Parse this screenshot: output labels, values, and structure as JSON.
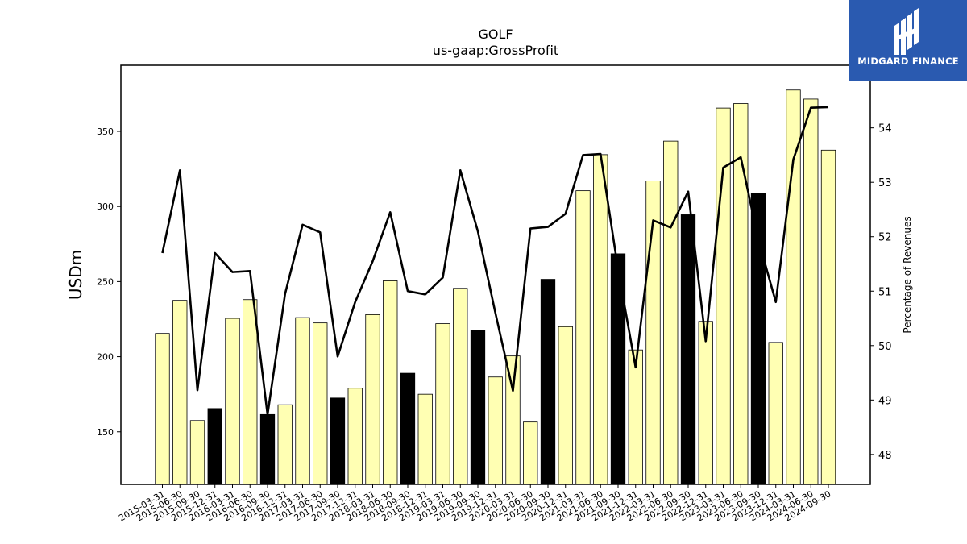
{
  "brand": {
    "name": "MIDGARD FINANCE",
    "logo_icon": "midgard-logo-icon",
    "background": "#2a5ab0"
  },
  "chart_data": {
    "type": "bar",
    "title": "GOLF",
    "subtitle": "us-gaap:GrossProfit",
    "ylabel": "USDm",
    "y2label": "Percentage of Revenues",
    "ylim": [
      115,
      394
    ],
    "y2lim": [
      47.45,
      55.15
    ],
    "yticks": [
      150,
      200,
      250,
      300,
      350
    ],
    "y2ticks": [
      48,
      49,
      50,
      51,
      52,
      53,
      54
    ],
    "grid": false,
    "colors": {
      "bar_default": "#ffffb3",
      "bar_highlight": "#000000",
      "line": "#000000"
    },
    "categories": [
      "2015-03-31",
      "2015-06-30",
      "2015-09-30",
      "2015-12-31",
      "2016-03-31",
      "2016-06-30",
      "2016-09-30",
      "2016-12-31",
      "2017-03-31",
      "2017-06-30",
      "2017-09-30",
      "2017-12-31",
      "2018-03-31",
      "2018-06-30",
      "2018-09-30",
      "2018-12-31",
      "2019-03-31",
      "2019-06-30",
      "2019-09-30",
      "2019-12-31",
      "2020-03-31",
      "2020-06-30",
      "2020-09-30",
      "2020-12-31",
      "2021-03-31",
      "2021-06-30",
      "2021-09-30",
      "2021-12-31",
      "2022-03-31",
      "2022-06-30",
      "2022-09-30",
      "2022-12-31",
      "2023-03-31",
      "2023-06-30",
      "2023-09-30",
      "2023-12-31",
      "2024-03-31",
      "2024-06-30",
      "2024-09-30"
    ],
    "series": [
      {
        "kind": "bar",
        "axis": "left",
        "values": [
          215.5,
          237.5,
          157.5,
          165.5,
          225.5,
          238,
          161.5,
          168,
          226,
          222.5,
          172.5,
          179,
          228,
          250.5,
          189,
          175,
          222,
          245.5,
          217.5,
          186.5,
          200.5,
          156.5,
          251.5,
          220,
          310.5,
          334.5,
          268.5,
          204.5,
          317,
          343.5,
          294.5,
          223.5,
          365.5,
          368.5,
          308.5,
          209.5,
          377.5,
          371.5,
          337.5
        ],
        "highlight": [
          false,
          false,
          false,
          true,
          false,
          false,
          true,
          false,
          false,
          false,
          true,
          false,
          false,
          false,
          true,
          false,
          false,
          false,
          true,
          false,
          false,
          false,
          true,
          false,
          false,
          false,
          true,
          false,
          false,
          false,
          true,
          false,
          false,
          false,
          true,
          false,
          false,
          false,
          false
        ]
      },
      {
        "kind": "line",
        "axis": "right",
        "values": [
          51.7,
          53.22,
          49.18,
          51.7,
          51.35,
          51.37,
          48.73,
          50.95,
          52.22,
          52.08,
          49.8,
          50.8,
          51.55,
          52.45,
          51.0,
          50.94,
          51.25,
          53.22,
          52.1,
          50.6,
          49.17,
          52.15,
          52.18,
          52.42,
          53.5,
          53.52,
          51.4,
          49.6,
          52.3,
          52.17,
          52.83,
          50.08,
          53.27,
          53.46,
          51.95,
          50.8,
          53.42,
          54.37,
          54.38
        ]
      }
    ]
  }
}
